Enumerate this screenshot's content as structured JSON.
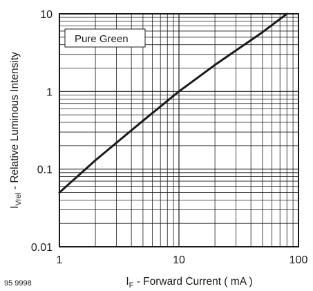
{
  "figure_id": "95 9998",
  "chart_data": {
    "type": "line",
    "x_scale": "log",
    "y_scale": "log",
    "xlim": [
      1,
      100
    ],
    "ylim": [
      0.01,
      10
    ],
    "x_ticks": [
      "1",
      "10",
      "100"
    ],
    "y_ticks": [
      "10",
      "1",
      "0.1",
      "0.01"
    ],
    "grid": true,
    "xlabel": {
      "main": "I",
      "sub": "F",
      "rest": " - Forward Current ( mA )"
    },
    "ylabel": {
      "main": "I",
      "sub": "Vrel",
      "rest": " - Relative Luminous Intensity"
    },
    "legend_position": "top-left",
    "series": [
      {
        "name": "Pure Green",
        "x": [
          1,
          2,
          5,
          10,
          20,
          50,
          80
        ],
        "y": [
          0.05,
          0.13,
          0.42,
          1.0,
          2.2,
          5.8,
          10.0
        ]
      }
    ]
  }
}
